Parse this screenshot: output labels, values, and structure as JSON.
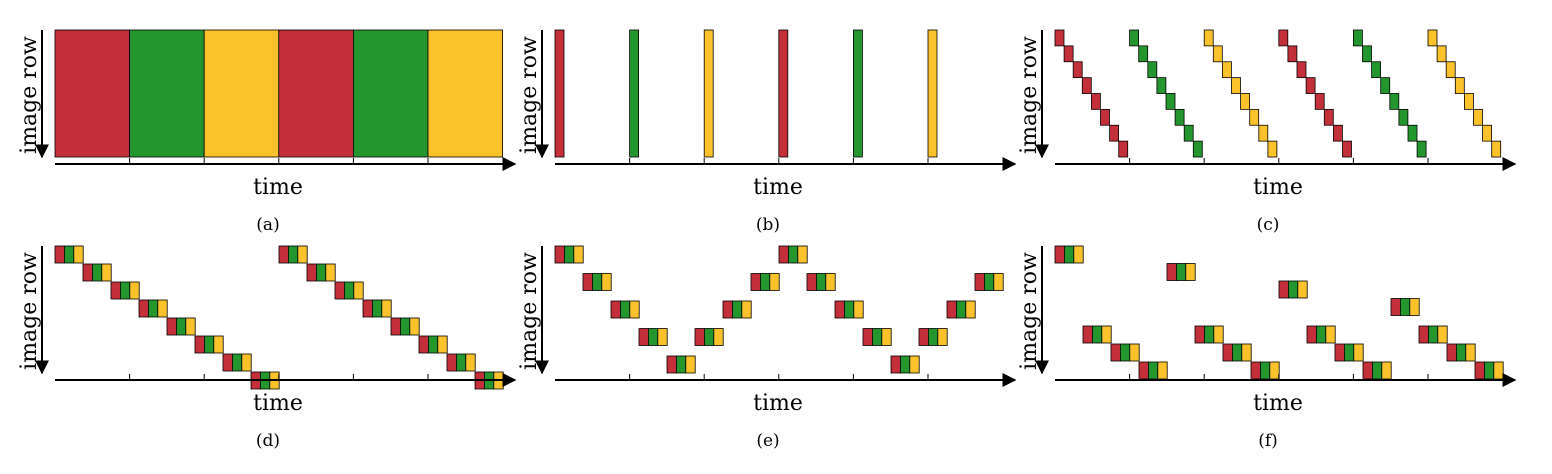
{
  "axis": {
    "x_label": "time",
    "y_label": "image row"
  },
  "colors": {
    "red": "#c4303a",
    "green": "#24962e",
    "yellow": "#fcc22b",
    "axis": "#000000"
  },
  "panels": [
    {
      "id": "a",
      "caption": "(a)",
      "pattern": "full-frame bands",
      "sequence": [
        "red",
        "green",
        "yellow",
        "red",
        "green",
        "yellow"
      ]
    },
    {
      "id": "b",
      "caption": "(b)",
      "pattern": "short global flashes",
      "sequence": [
        "red",
        "green",
        "yellow",
        "red",
        "green",
        "yellow"
      ]
    },
    {
      "id": "c",
      "caption": "(c)",
      "pattern": "rolling staircases",
      "sequence": [
        "red",
        "green",
        "yellow",
        "red",
        "green",
        "yellow"
      ]
    },
    {
      "id": "d",
      "caption": "(d)",
      "pattern": "rgb triplet staircase, top to bottom, twice",
      "triplet": [
        "red",
        "green",
        "yellow"
      ]
    },
    {
      "id": "e",
      "caption": "(e)",
      "pattern": "rgb triplet zig-zag",
      "triplet": [
        "red",
        "green",
        "yellow"
      ]
    },
    {
      "id": "f",
      "caption": "(f)",
      "pattern": "rgb triplet scattered",
      "triplet": [
        "red",
        "green",
        "yellow"
      ]
    }
  ]
}
